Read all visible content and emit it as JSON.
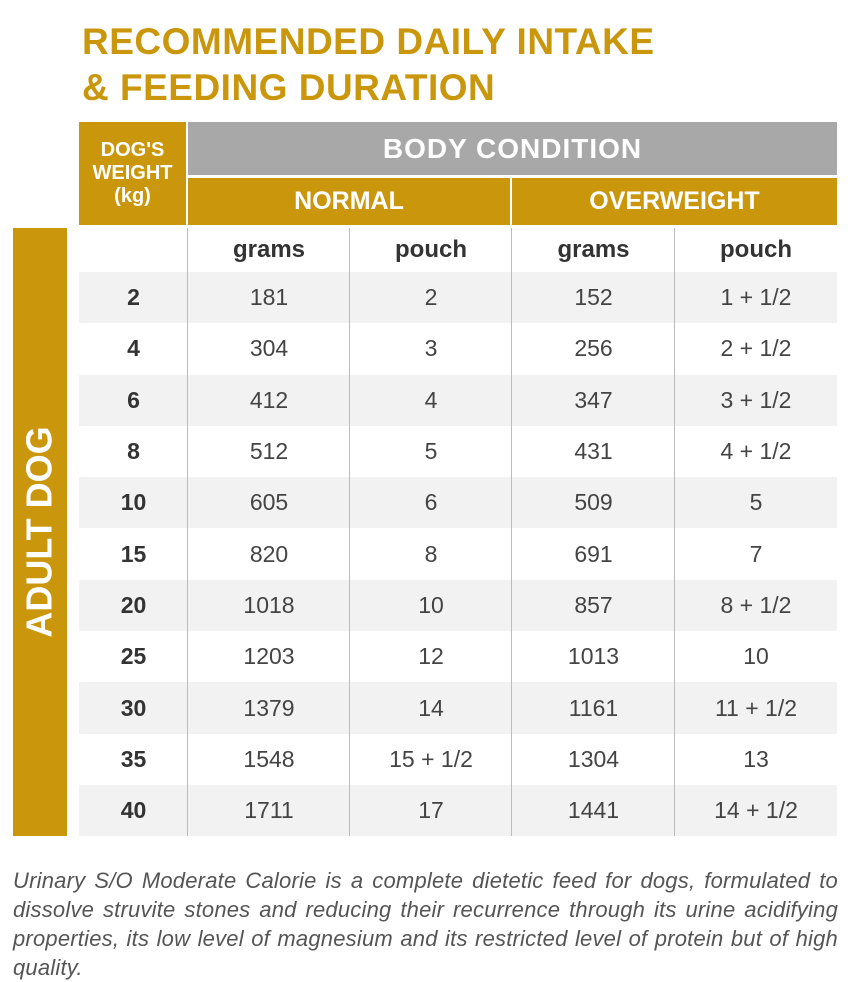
{
  "header": {
    "title_lines": [
      "RECOMMENDED DAILY INTAKE",
      "& FEEDING DURATION"
    ]
  },
  "table": {
    "weight_header_lines": [
      "DOG'S",
      "WEIGHT",
      "(kg)"
    ],
    "group_header": "BODY CONDITION",
    "condition_headers": [
      "NORMAL",
      "OVERWEIGHT"
    ],
    "unit_headers": [
      "grams",
      "pouch",
      "grams",
      "pouch"
    ],
    "side_label": "ADULT DOG",
    "rows": [
      [
        "2",
        "181",
        "2",
        "152",
        "1 + 1/2"
      ],
      [
        "4",
        "304",
        "3",
        "256",
        "2 + 1/2"
      ],
      [
        "6",
        "412",
        "4",
        "347",
        "3 + 1/2"
      ],
      [
        "8",
        "512",
        "5",
        "431",
        "4 + 1/2"
      ],
      [
        "10",
        "605",
        "6",
        "509",
        "5"
      ],
      [
        "15",
        "820",
        "8",
        "691",
        "7"
      ],
      [
        "20",
        "1018",
        "10",
        "857",
        "8 + 1/2"
      ],
      [
        "25",
        "1203",
        "12",
        "1013",
        "10"
      ],
      [
        "30",
        "1379",
        "14",
        "1161",
        "11 + 1/2"
      ],
      [
        "35",
        "1548",
        "15 + 1/2",
        "1304",
        "13"
      ],
      [
        "40",
        "1711",
        "17",
        "1441",
        "14 + 1/2"
      ]
    ]
  },
  "footer": {
    "text": "Urinary S/O Moderate Calorie is a complete dietetic feed for dogs, formulated to dissolve struvite stones and reducing their recurrence through its urine acidifying properties, its low level of magnesium and its restricted level of protein but of high quality."
  }
}
